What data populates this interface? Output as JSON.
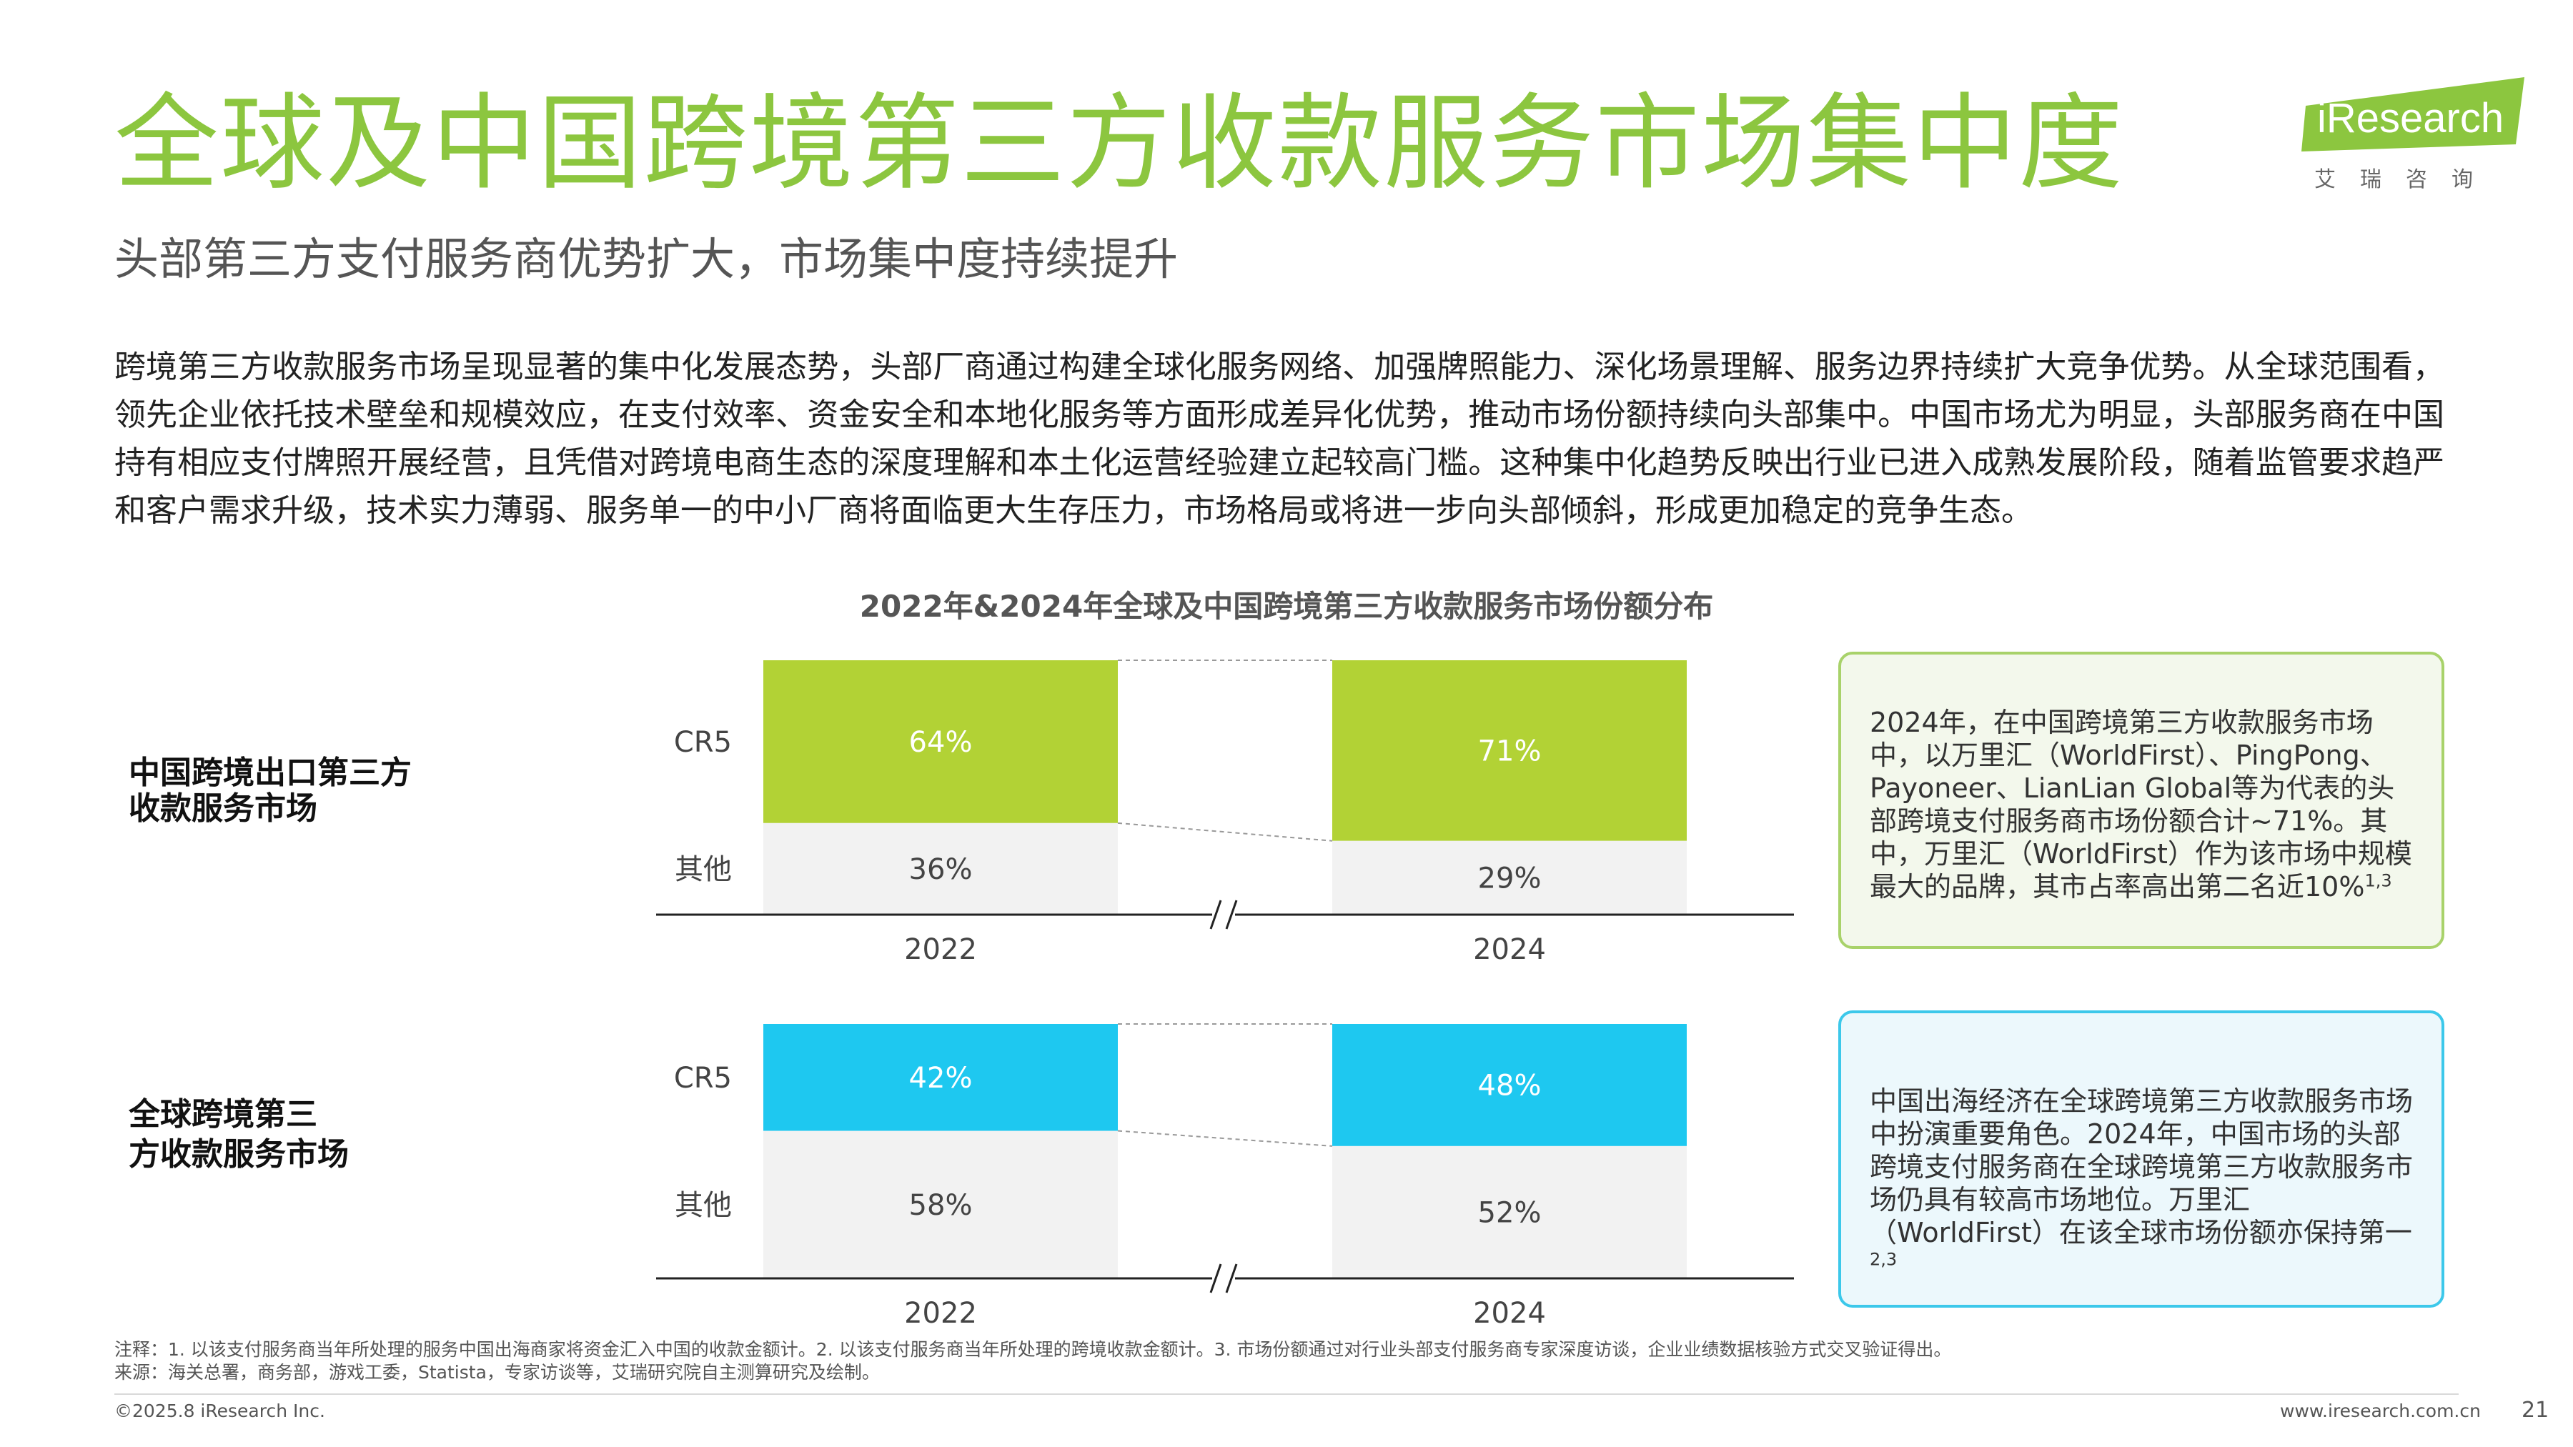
{
  "header": {
    "title": "全球及中国跨境第三方收款服务市场集中度",
    "subtitle": "头部第三方支付服务商优势扩大，市场集中度持续提升"
  },
  "body_text": "跨境第三方收款服务市场呈现显著的集中化发展态势，头部厂商通过构建全球化服务网络、加强牌照能力、深化场景理解、服务边界持续扩大竞争优势。从全球范围看，领先企业依托技术壁垒和规模效应，在支付效率、资金安全和本地化服务等方面形成差异化优势，推动市场份额持续向头部集中。中国市场尤为明显，头部服务商在中国持有相应支付牌照开展经营，且凭借对跨境电商生态的深度理解和本土化运营经验建立起较高门槛。这种集中化趋势反映出行业已进入成熟发展阶段，随着监管要求趋严和客户需求升级，技术实力薄弱、服务单一的中小厂商将面临更大生存压力，市场格局或将进一步向头部倾斜，形成更加稳定的竞争生态。",
  "logo": {
    "text": "iResearch",
    "cn": "艾瑞咨询"
  },
  "chart_data": [
    {
      "type": "bar",
      "stacked": true,
      "percent": true,
      "title": "2022年&2024年全球及中国跨境第三方收款服务市场份额分布",
      "panel_label": "中国跨境出口第三方收款服务市场",
      "categories": [
        "2022",
        "2024"
      ],
      "series": [
        {
          "name": "CR5",
          "values": [
            64,
            71
          ],
          "labels": [
            "64%",
            "71%"
          ],
          "color": "#b2d235"
        },
        {
          "name": "其他",
          "values": [
            36,
            29
          ],
          "labels": [
            "36%",
            "29%"
          ],
          "color": "#f2f2f2"
        }
      ],
      "ylim": [
        0,
        100
      ]
    },
    {
      "type": "bar",
      "stacked": true,
      "percent": true,
      "panel_label": "全球跨境第三方收款服务市场",
      "categories": [
        "2022",
        "2024"
      ],
      "series": [
        {
          "name": "CR5",
          "values": [
            42,
            48
          ],
          "labels": [
            "42%",
            "48%"
          ],
          "color": "#1ec8f0"
        },
        {
          "name": "其他",
          "values": [
            58,
            52
          ],
          "labels": [
            "58%",
            "52%"
          ],
          "color": "#f2f2f2"
        }
      ],
      "ylim": [
        0,
        100
      ]
    }
  ],
  "callouts": [
    {
      "text": "2024年，在中国跨境第三方收款服务市场中，以万里汇（WorldFirst）、PingPong、Payoneer、LianLian Global等为代表的头部跨境支付服务商市场份额合计~71%。其中，万里汇（WorldFirst）作为该市场中规模最大的品牌，其市占率高出第二名近10%",
      "sup": "1,3"
    },
    {
      "text": "中国出海经济在全球跨境第三方收款服务市场中扮演重要角色。2024年，中国市场的头部跨境支付服务商在全球跨境第三方收款服务市场仍具有较高市场地位。万里汇（WorldFirst）在该全球市场份额亦保持第一",
      "sup": "2,3"
    }
  ],
  "footer": {
    "note": "注释：1. 以该支付服务商当年所处理的服务中国出海商家将资金汇入中国的收款金额计。2. 以该支付服务商当年所处理的跨境收款金额计。3. 市场份额通过对行业头部支付服务商专家深度访谈，企业业绩数据核验方式交叉验证得出。",
    "source": "来源：海关总署，商务部，游戏工委，Statista，专家访谈等，艾瑞研究院自主测算研究及绘制。",
    "copyright": "©2025.8 iResearch Inc.",
    "website": "www.iresearch.com.cn",
    "page": "21"
  }
}
